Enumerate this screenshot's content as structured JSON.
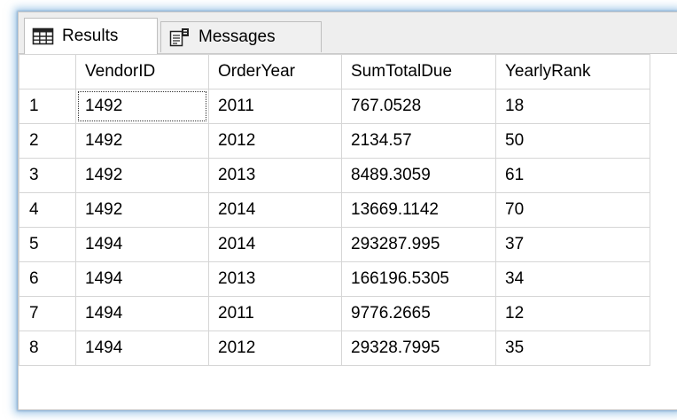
{
  "tabs": {
    "results_label": "Results",
    "messages_label": "Messages",
    "results_icon": "grid-icon",
    "messages_icon": "messages-icon"
  },
  "grid": {
    "columns": [
      "",
      "VendorID",
      "OrderYear",
      "SumTotalDue",
      "YearlyRank"
    ],
    "rows": [
      [
        "1",
        "1492",
        "2011",
        "767.0528",
        "18"
      ],
      [
        "2",
        "1492",
        "2012",
        "2134.57",
        "50"
      ],
      [
        "3",
        "1492",
        "2013",
        "8489.3059",
        "61"
      ],
      [
        "4",
        "1492",
        "2014",
        "13669.1142",
        "70"
      ],
      [
        "5",
        "1494",
        "2014",
        "293287.995",
        "37"
      ],
      [
        "6",
        "1494",
        "2013",
        "166196.5305",
        "34"
      ],
      [
        "7",
        "1494",
        "2011",
        "9776.2665",
        "12"
      ],
      [
        "8",
        "1494",
        "2012",
        "29328.7995",
        "35"
      ]
    ]
  },
  "colors": {
    "glow": "#5fa0d7",
    "tabbar_bg": "#eeeeee",
    "grid_line": "#d6d6d6"
  }
}
